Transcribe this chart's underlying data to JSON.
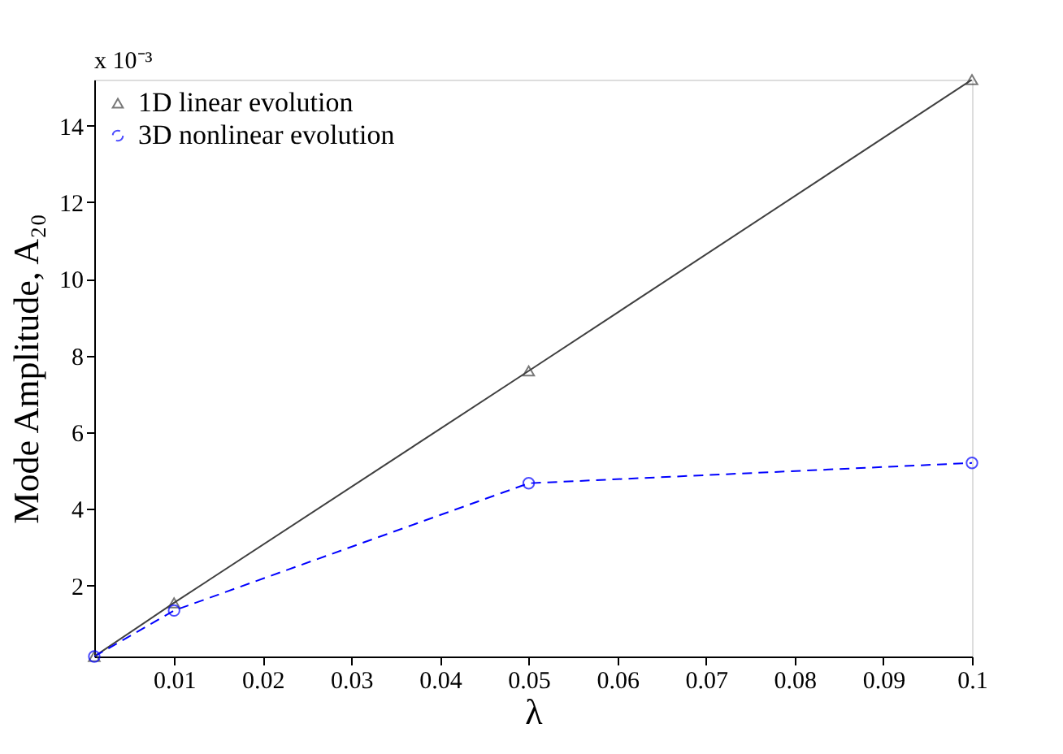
{
  "chart_data": {
    "type": "line",
    "xlabel": "λ",
    "ylabel": "Mode Amplitude, A₂₀",
    "annotations": [
      "x 10⁻³"
    ],
    "x": [
      0.001,
      0.01,
      0.05,
      0.1
    ],
    "series": [
      {
        "name": "1D linear evolution",
        "color": "#404040",
        "values": [
          0.15,
          1.55,
          7.6,
          15.2
        ],
        "marker": "triangle",
        "line_style": "solid"
      },
      {
        "name": "3D nonlinear evolution",
        "color": "#0000ff",
        "values": [
          0.15,
          1.35,
          4.67,
          5.2
        ],
        "marker": "circle",
        "line_style": "dashed"
      }
    ],
    "xlim": [
      0.001,
      0.1
    ],
    "xticks": [
      0.01,
      0.02,
      0.03,
      0.04,
      0.05,
      0.06,
      0.07,
      0.08,
      0.09,
      0.1
    ],
    "ylim": [
      0.15,
      15.2
    ],
    "yticks": [
      2,
      4,
      6,
      8,
      10,
      12,
      14
    ],
    "grid": false,
    "legend": "top left"
  }
}
